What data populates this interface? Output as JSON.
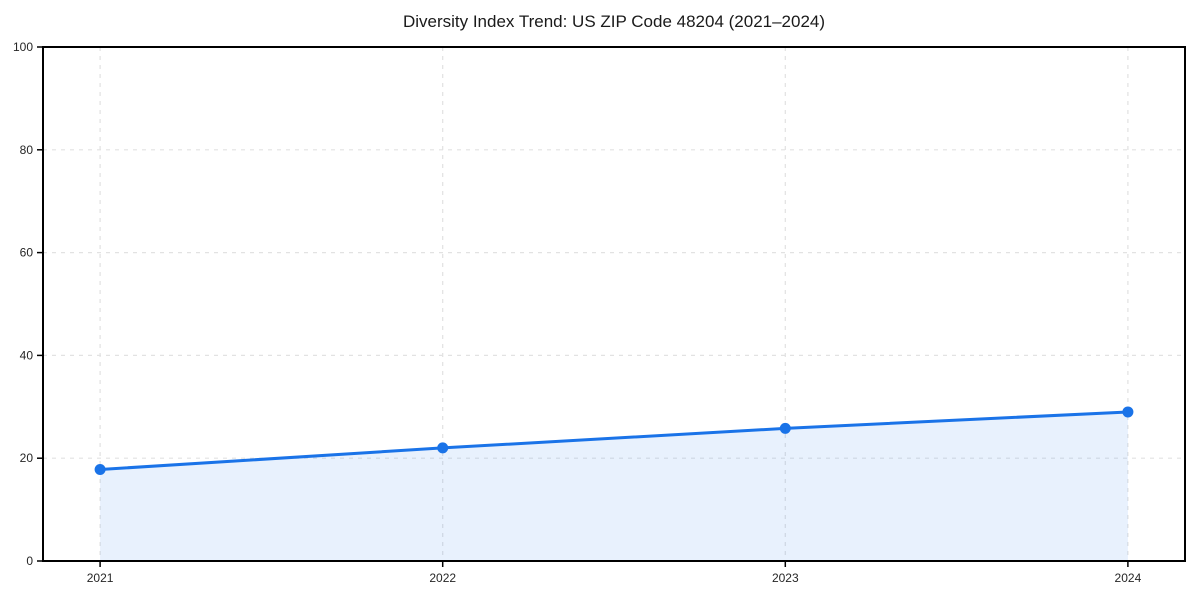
{
  "chart_data": {
    "type": "line",
    "title": "Diversity Index Trend: US ZIP Code 48204 (2021–2024)",
    "categories": [
      "2021",
      "2022",
      "2023",
      "2024"
    ],
    "x": [
      2021,
      2022,
      2023,
      2024
    ],
    "series": [
      {
        "name": "Diversity Index",
        "values": [
          17.8,
          22.0,
          25.8,
          29.0
        ]
      }
    ],
    "xlabel": "",
    "ylabel": "",
    "ylim": [
      0,
      100
    ],
    "yticks": [
      0,
      20,
      40,
      60,
      80,
      100
    ],
    "grid": true,
    "grid_style": "dashed",
    "legend_position": "none",
    "marker": "circle",
    "area_fill": true,
    "colors": {
      "line": "#1a73e8",
      "marker": "#1a73e8",
      "area": "rgba(26,115,232,0.10)",
      "grid": "#e2e2e2",
      "spine": "#000000",
      "tick_text": "#262626",
      "background": "#ffffff"
    }
  }
}
